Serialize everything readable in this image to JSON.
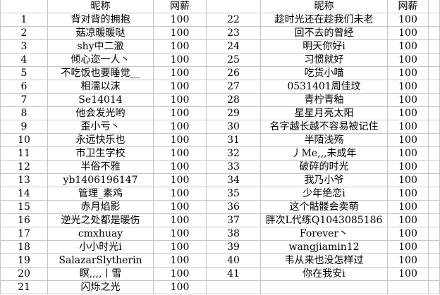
{
  "sheet": {
    "columns": {
      "nickname_header": "昵称",
      "salary_header": "网薪"
    },
    "colors": {
      "gridline": "#c6c6c6",
      "text": "#000000",
      "background": "#ffffff"
    },
    "left_rows": [
      {
        "num": "1",
        "nickname": "背对背的拥抱",
        "salary": "100"
      },
      {
        "num": "2",
        "nickname": "菇凉暖暖哒",
        "salary": "100"
      },
      {
        "num": "3",
        "nickname": "shy中二澈",
        "salary": "100"
      },
      {
        "num": "4",
        "nickname": "倾心迩一人丶",
        "salary": "100"
      },
      {
        "num": "5",
        "nickname": "不吃饭也要睡觉__",
        "salary": "100"
      },
      {
        "num": "6",
        "nickname": "相濡以沫",
        "salary": "100"
      },
      {
        "num": "7",
        "nickname": "Se14014",
        "salary": "100"
      },
      {
        "num": "8",
        "nickname": "他会发光哟",
        "salary": "100"
      },
      {
        "num": "9",
        "nickname": "歪小亏丶",
        "salary": "100"
      },
      {
        "num": "10",
        "nickname": "永远快乐也",
        "salary": "100"
      },
      {
        "num": "11",
        "nickname": "市卫生学校",
        "salary": "100"
      },
      {
        "num": "12",
        "nickname": "半俗不雅",
        "salary": "100"
      },
      {
        "num": "13",
        "nickname": "yb1406196147",
        "salary": "100"
      },
      {
        "num": "14",
        "nickname": "管理_素鸡",
        "salary": "100"
      },
      {
        "num": "15",
        "nickname": "赤月焰影",
        "salary": "100"
      },
      {
        "num": "16",
        "nickname": "逆光之处都是暖伤",
        "salary": "100"
      },
      {
        "num": "17",
        "nickname": "cmxhuay",
        "salary": "100"
      },
      {
        "num": "18",
        "nickname": "小小时光i",
        "salary": "100"
      },
      {
        "num": "19",
        "nickname": "SalazarSlytherin",
        "salary": "100"
      },
      {
        "num": "20",
        "nickname": "瞑,,,,丨雪",
        "salary": "100"
      },
      {
        "num": "21",
        "nickname": "闪烁之光",
        "salary": "100"
      }
    ],
    "right_rows": [
      {
        "num": "22",
        "nickname": "趁时光还在趁我们未老",
        "salary": "100"
      },
      {
        "num": "23",
        "nickname": "回不去的曾经",
        "salary": "100"
      },
      {
        "num": "24",
        "nickname": "明天你好i",
        "salary": "100"
      },
      {
        "num": "25",
        "nickname": "习惯就好",
        "salary": "100"
      },
      {
        "num": "26",
        "nickname": "吃货小喵",
        "salary": "100"
      },
      {
        "num": "27",
        "nickname": "0531401周佳玟",
        "salary": "100"
      },
      {
        "num": "28",
        "nickname": "青柠青釉",
        "salary": "100"
      },
      {
        "num": "29",
        "nickname": "星星月亮太阳",
        "salary": "100"
      },
      {
        "num": "30",
        "nickname": "名字越长越不容易被记住",
        "salary": "100"
      },
      {
        "num": "31",
        "nickname": "半陌浅殇",
        "salary": "100"
      },
      {
        "num": "32",
        "nickname": "丿Me,,,未成年",
        "salary": "100"
      },
      {
        "num": "33",
        "nickname": "破碎的时光",
        "salary": "100"
      },
      {
        "num": "34",
        "nickname": "我乃小爷",
        "salary": "100"
      },
      {
        "num": "35",
        "nickname": "少年绝恋i",
        "salary": "100"
      },
      {
        "num": "36",
        "nickname": "这个骷髅会卖萌",
        "salary": "100"
      },
      {
        "num": "37",
        "nickname": "胖次L代练Q1043085186",
        "salary": "100"
      },
      {
        "num": "38",
        "nickname": "Forever丶",
        "salary": "100"
      },
      {
        "num": "39",
        "nickname": "wangjiamin12",
        "salary": "100"
      },
      {
        "num": "40",
        "nickname": "韦从来也没怎样过",
        "salary": "100"
      },
      {
        "num": "41",
        "nickname": "你在我安i",
        "salary": "100"
      },
      {
        "num": "",
        "nickname": "",
        "salary": ""
      }
    ]
  }
}
